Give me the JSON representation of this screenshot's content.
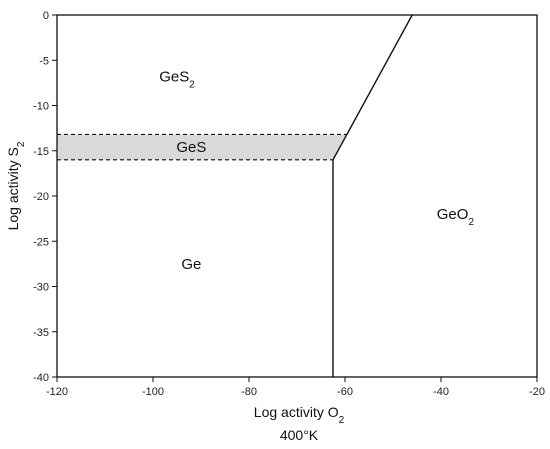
{
  "chart_data": {
    "type": "phase-diagram",
    "title": "",
    "caption": "400°K",
    "xlabel": {
      "base": "Log activity O",
      "sub": "2"
    },
    "ylabel": {
      "base": "Log activity S",
      "sub": "2"
    },
    "xlim": [
      -120,
      -20
    ],
    "ylim": [
      -40,
      0
    ],
    "x_ticks": [
      -120,
      -100,
      -80,
      -60,
      -40,
      -20
    ],
    "y_ticks": [
      0,
      -5,
      -10,
      -15,
      -20,
      -25,
      -30,
      -35,
      -40
    ],
    "boundaries": [
      {
        "name": "geo2-boundary-lower",
        "style": "solid",
        "points": [
          [
            -62.5,
            -40
          ],
          [
            -62.5,
            -16
          ]
        ]
      },
      {
        "name": "geo2-boundary-upper",
        "style": "solid",
        "points": [
          [
            -62.5,
            -16
          ],
          [
            -46,
            0
          ]
        ]
      },
      {
        "name": "ges-band-top",
        "style": "dashed",
        "points": [
          [
            -120,
            -13.2
          ],
          [
            -59.5,
            -13.2
          ]
        ]
      },
      {
        "name": "ges-band-bottom",
        "style": "dashed",
        "points": [
          [
            -120,
            -16
          ],
          [
            -62.5,
            -16
          ]
        ]
      }
    ],
    "shaded_band": {
      "name": "GeS",
      "points": [
        [
          -120,
          -13.2
        ],
        [
          -59.5,
          -13.2
        ],
        [
          -62.5,
          -16
        ],
        [
          -120,
          -16
        ]
      ],
      "color": "#d9d9d9"
    },
    "regions": [
      {
        "name": "ges2",
        "label": "GeS",
        "sub": "2",
        "x": -95,
        "y": -6.8
      },
      {
        "name": "ges",
        "label": "GeS",
        "sub": "",
        "x": -92,
        "y": -14.6
      },
      {
        "name": "ge",
        "label": "Ge",
        "sub": "",
        "x": -92,
        "y": -27.5
      },
      {
        "name": "geo2",
        "label": "GeO",
        "sub": "2",
        "x": -37,
        "y": -22
      }
    ]
  }
}
